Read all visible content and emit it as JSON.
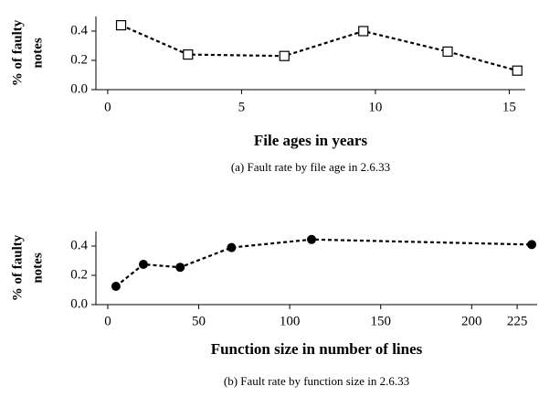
{
  "chart_data": [
    {
      "type": "line",
      "marker": "square-open",
      "color": "#000000",
      "ylabel": [
        "% of faulty",
        "notes"
      ],
      "xlabel": "File ages in years",
      "caption": "(a)  Fault rate by file age in 2.6.33",
      "x": [
        0.5,
        3.0,
        6.6,
        9.55,
        12.7,
        15.3
      ],
      "values": [
        0.44,
        0.24,
        0.23,
        0.4,
        0.26,
        0.13
      ],
      "xlim": [
        -0.44,
        15.6
      ],
      "xticks": [
        0,
        5,
        10,
        15
      ],
      "ylim": [
        0,
        0.5
      ],
      "yticks": [
        {
          "value": 0,
          "label": "0.0"
        },
        0.2,
        0.4
      ]
    },
    {
      "type": "line",
      "marker": "circle",
      "color": "#000000",
      "ylabel": [
        "% of faulty",
        "notes"
      ],
      "xlabel": "Function size in number of lines",
      "caption": "(b)  Fault rate by function size in 2.6.33",
      "x": [
        4.5,
        19.6,
        39.8,
        68,
        112,
        233
      ],
      "values": [
        0.125,
        0.275,
        0.255,
        0.39,
        0.445,
        0.41
      ],
      "xlim": [
        -6.5,
        236
      ],
      "xticks": [
        0,
        50,
        100,
        150,
        200,
        225
      ],
      "ylim": [
        0,
        0.5
      ],
      "yticks": [
        {
          "value": 0,
          "label": "0.0"
        },
        0.2,
        0.4
      ]
    }
  ]
}
